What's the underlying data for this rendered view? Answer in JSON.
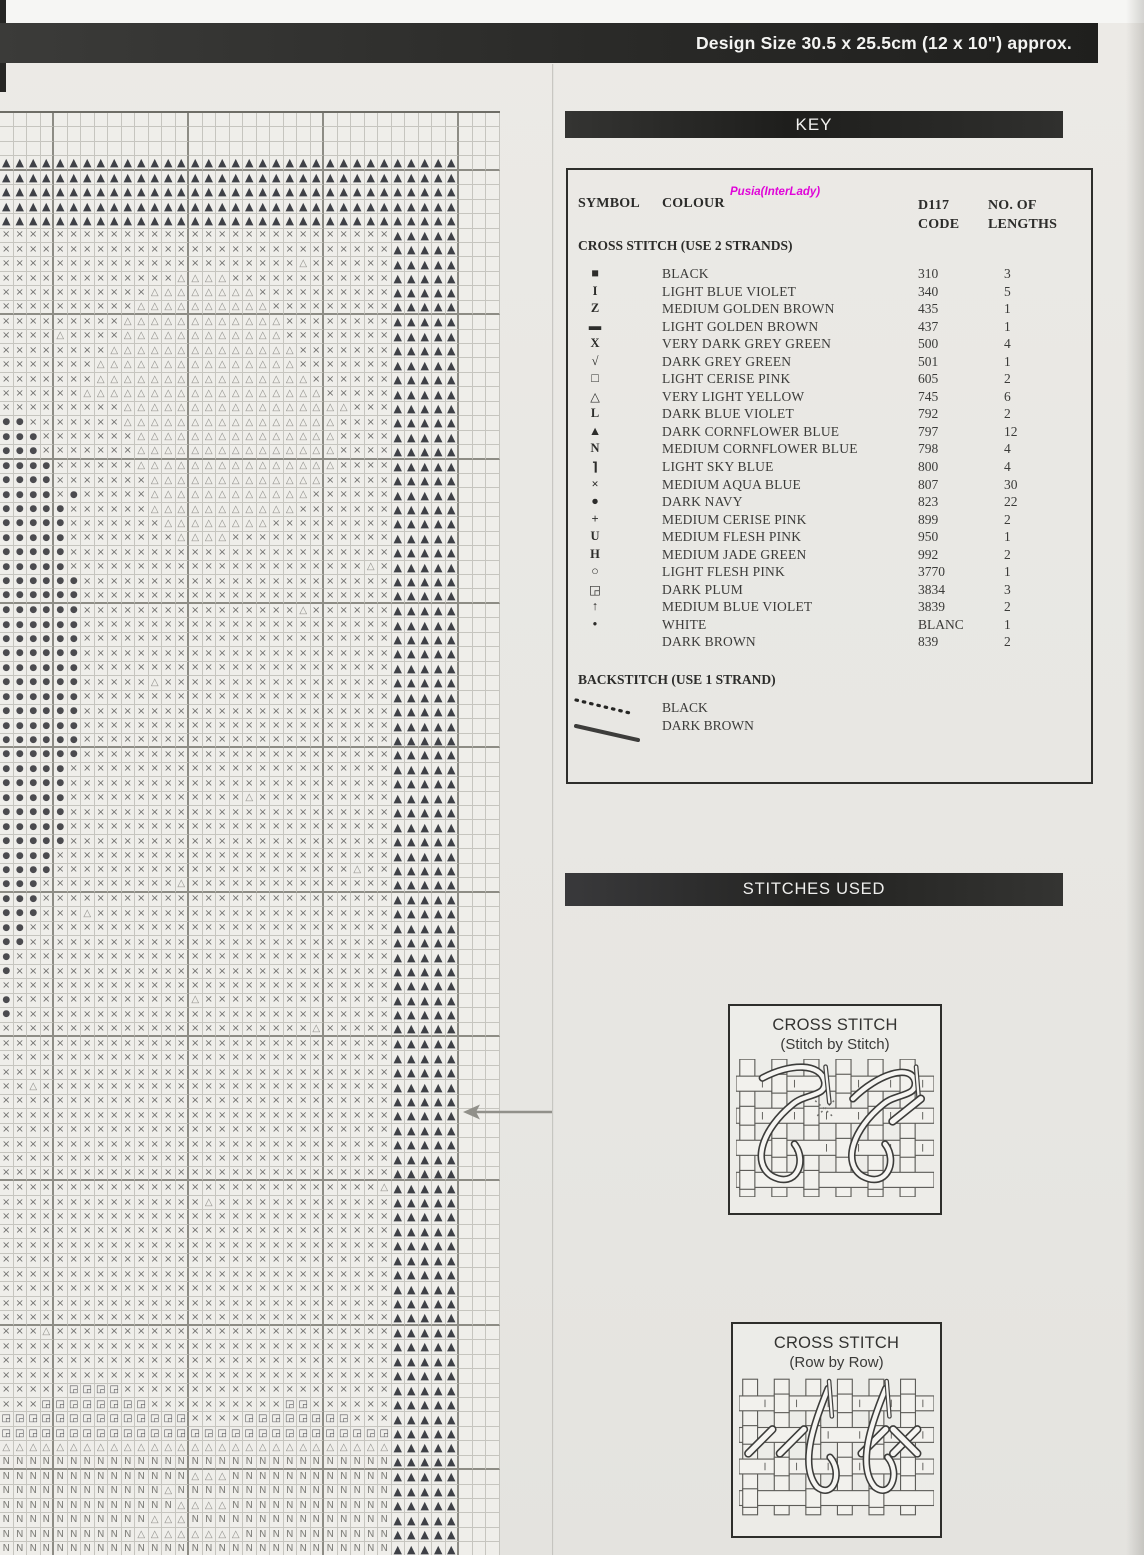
{
  "page": {
    "design_size_banner": "Design Size 30.5 x 25.5cm (12 x 10\") approx.",
    "watermark": "Pusia(InterLady)"
  },
  "key": {
    "title": "KEY",
    "columns": {
      "symbol": "SYMBOL",
      "colour": "COLOUR",
      "code_line1": "D117",
      "code_line2": "CODE",
      "lengths_line1": "NO. OF",
      "lengths_line2": "LENGTHS"
    },
    "cross_stitch_heading": "CROSS STITCH (USE 2 STRANDS)",
    "entries": [
      {
        "symbol": "■",
        "colour": "BLACK",
        "code": "310",
        "lengths": "3"
      },
      {
        "symbol": "I",
        "colour": "LIGHT BLUE VIOLET",
        "code": "340",
        "lengths": "5"
      },
      {
        "symbol": "Z",
        "colour": "MEDIUM GOLDEN BROWN",
        "code": "435",
        "lengths": "1"
      },
      {
        "symbol": "▬",
        "colour": "LIGHT GOLDEN BROWN",
        "code": "437",
        "lengths": "1"
      },
      {
        "symbol": "X",
        "colour": "VERY DARK GREY GREEN",
        "code": "500",
        "lengths": "4"
      },
      {
        "symbol": "√",
        "colour": "DARK GREY GREEN",
        "code": "501",
        "lengths": "1"
      },
      {
        "symbol": "□",
        "colour": "LIGHT CERISE PINK",
        "code": "605",
        "lengths": "2"
      },
      {
        "symbol": "△",
        "colour": "VERY LIGHT YELLOW",
        "code": "745",
        "lengths": "6"
      },
      {
        "symbol": "L",
        "colour": "DARK BLUE VIOLET",
        "code": "792",
        "lengths": "2"
      },
      {
        "symbol": "▲",
        "colour": "DARK CORNFLOWER BLUE",
        "code": "797",
        "lengths": "12"
      },
      {
        "symbol": "N",
        "colour": "MEDIUM CORNFLOWER BLUE",
        "code": "798",
        "lengths": "4"
      },
      {
        "symbol": "⌉",
        "colour": "LIGHT SKY BLUE",
        "code": "800",
        "lengths": "4"
      },
      {
        "symbol": "×",
        "colour": "MEDIUM AQUA BLUE",
        "code": "807",
        "lengths": "30"
      },
      {
        "symbol": "●",
        "colour": "DARK NAVY",
        "code": "823",
        "lengths": "22"
      },
      {
        "symbol": "+",
        "colour": "MEDIUM CERISE PINK",
        "code": "899",
        "lengths": "2"
      },
      {
        "symbol": "U",
        "colour": "MEDIUM FLESH PINK",
        "code": "950",
        "lengths": "1"
      },
      {
        "symbol": "H",
        "colour": "MEDIUM JADE GREEN",
        "code": "992",
        "lengths": "2"
      },
      {
        "symbol": "○",
        "colour": "LIGHT FLESH PINK",
        "code": "3770",
        "lengths": "1"
      },
      {
        "symbol": "◲",
        "colour": "DARK PLUM",
        "code": "3834",
        "lengths": "3"
      },
      {
        "symbol": "↑",
        "colour": "MEDIUM BLUE VIOLET",
        "code": "3839",
        "lengths": "2"
      },
      {
        "symbol": "•",
        "colour": "WHITE",
        "code": "BLANC",
        "lengths": "1"
      },
      {
        "symbol": "",
        "colour": "DARK BROWN",
        "code": "839",
        "lengths": "2"
      }
    ],
    "backstitch_heading": "BACKSTITCH (USE 1 STRAND)",
    "backstitch_entries": [
      {
        "style": "dotted",
        "colour": "BLACK"
      },
      {
        "style": "solid",
        "colour": "DARK BROWN"
      }
    ]
  },
  "stitches_used": {
    "title": "STITCHES USED",
    "diagrams": [
      {
        "title": "CROSS STITCH",
        "subtitle": "(Stitch by Stitch)"
      },
      {
        "title": "CROSS STITCH",
        "subtitle": "(Row by Row)"
      }
    ]
  },
  "chart": {
    "columns": 37,
    "symbol_map": {
      "A": "▲",
      "x": "×",
      "d": "△",
      "o": "●",
      "N": "N",
      "q": "◲",
      ".": ""
    },
    "rows": [
      ".....................................",
      ".....................................",
      ".....................................",
      "AAAAAAAAAAAAAAAAAAAAAAAAAAAAAAAAAA...",
      "AAAAAAAAAAAAAAAAAAAAAAAAAAAAAAAAAA...",
      "AAAAAAAAAAAAAAAAAAAAAAAAAAAAAAAAAA...",
      "AAAAAAAAAAAAAAAAAAAAAAAAAAAAAAAAAA...",
      "AAAAAAAAAAAAAAAAAAAAAAAAAAAAAAAAAA...",
      "xxxxxxxxxxxxxxxxxxxxxxxxxxxxxAAAAA...",
      "xxxxxxxxxxxxxxxxxxxxxxxxxxxxxAAAAA...",
      "xxxxxxxxxxxxxxxxxxxxxxdxxxxxxAAAAA...",
      "xxxxxxxxxxxxxddddxxxxxxxxxxxxAAAAA...",
      "xxxxxxxxxxxddddddddxxxxxxxxxxAAAAA...",
      "xxxxxxxxxxddddddddddxxxxxxxxxAAAAA...",
      "xxxxxxxxxddddddddddddxxxxxxxxAAAAA...",
      "xxxxdxxxxddddddddddddxxxxxxxxAAAAA...",
      "xxxxxxxxddddddddddddddxxxxxxxAAAAA...",
      "xxxxxxxdddddddddddddddxxxxxxxAAAAA...",
      "xxxxxxxddddddddddddddddxxxxxxAAAAA...",
      "xxxxxxddddddddddddddddddxxxxxAAAAA...",
      "xxxxxxxxxdddddddddddddddddxxxAAAAA...",
      "ooxxxxxxxddddddddddddddddxxxxAAAAA...",
      "oooxxxxxxxdddddddddddddddxxxxAAAAA...",
      "oooxxxxxxxdddddddddddddddxxxxAAAAA...",
      "ooooxxxxxxdddddddddddddddxxxxAAAAA...",
      "ooooxxxxxxxdddddddddddddxxxxxAAAAA...",
      "ooooxoxxxxxddddddddddddxxxxxxAAAAA...",
      "oooooxxxxxxdddddddddddxxxxxxxAAAAA...",
      "oooooxxxxxxxddddddddxxxxxxxxxAAAAA...",
      "oooooxxxxxxxxddddxxxxxxxxxxxxAAAAA...",
      "oooooxxxxxxxxxxxxxxxxxxxxxxxxAAAAA...",
      "oooooxxxxxxxxxxxxxxxxxxxxxxdxAAAAA...",
      "ooooooxxxxxxxxxxxxxxxxxxxxxxxAAAAA...",
      "ooooooxxxxxxxxxxxxxxxxxxxxxxxAAAAA...",
      "ooooooxxxxxxxxxxxxxxxxdxxxxxxAAAAA...",
      "ooooooxxxxxxxxxxxxxxxxxxxxxxxAAAAA...",
      "ooooooxxxxxxxxxxxxxxxxxxxxxxxAAAAA...",
      "ooooooxxxxxxxxxxxxxxxxxxxxxxxAAAAA...",
      "ooooooxxxxxxxxxxxxxxxxxxxxxxxAAAAA...",
      "ooooooxxxxxdxxxxxxxxxxxxxxxxxAAAAA...",
      "ooooooxxxxxxxxxxxxxxxxxxxxxxxAAAAA...",
      "ooooooxxxxxxxxxxxxxxxxxxxxxxxAAAAA...",
      "ooooooxxxxxxxxxxxxxxxxxxxxxxxAAAAA...",
      "ooooooxxxxxxxxxxxxxxxxxxxxxxxAAAAA...",
      "ooooooxxxxxxxxxxxxxxxxxxxxxxxAAAAA...",
      "oooooxxxxxxxxxxxxxxxxxxxxxxxxAAAAA...",
      "oooooxxxxxxxxxxxxxxxxxxxxxxxxAAAAA...",
      "oooooxxxxxxxxxxxxxdxxxxxxxxxxAAAAA...",
      "oooooxxxxxxxxxxxxxxxxxxxxxxxxAAAAA...",
      "oooooxxxxxxxxxxxxxxxxxxxxxxxxAAAAA...",
      "oooooxxxxxxxxxxxxxxxxxxxxxxxxAAAAA...",
      "ooooxxxxxxxxxxxxxxxxxxxxxxxxxAAAAA...",
      "ooooxxxxxxxxxxxxxxxxxxxxxxdxxAAAAA...",
      "oooxxxxxxxxxxdxxxxxxxxxxxxxxxAAAAA...",
      "oooxxxxxxxxxxxxxxxxxxxxxxxxxxAAAAA...",
      "oooxxxdxxxxxxxxxxxxxxxxxxxxxxAAAAA...",
      "ooxxxxxxxxxxxxxxxxxxxxxxxxxxxAAAAA...",
      "ooxxxxxxxxxxxxxxxxxxxxxxxxxxxAAAAA...",
      "oxxxxxxxxxxxxxxxxxxxxxxxxxxxxAAAAA...",
      "oxxxxxxxxxxxxxxxxxxxxxxxxxxxxAAAAA...",
      "xxxxxxxxxxxxxxxxxxxxxxxxxxxxxAAAAA...",
      "oxxxxxxxxxxxxxdxxxxxxxxxxxxxxAAAAA...",
      "oxxxxxxxxxxxxxxxxxxxxxxxxxxxxAAAAA...",
      "xxxxxxxxxxxxxxxxxxxxxxxdxxxxxAAAAA...",
      "xxxxxxxxxxxxxxxxxxxxxxxxxxxxxAAAAA...",
      "xxxxxxxxxxxxxxxxxxxxxxxxxxxxxAAAAA...",
      "xxxxxxxxxxxxxxxxxxxxxxxxxxxxxAAAAA...",
      "xxdxxxxxxxxxxxxxxxxxxxxxxxxxxAAAAA...",
      "xxxxxxxxxxxxxxxxxxxxxxxxxxxxxAAAAA...",
      "xxxxxxxxxxxxxxxxxxxxxxxxxxxxxAAAAA...",
      "xxxxxxxxxxxxxxxxxxxxxxxxxxxxxAAAAA...",
      "xxxxxxxxxxxxxxxxxxxxxxxxxxxxxAAAAA...",
      "xxxxxxxxxxxxxxxxxxxxxxxxxxxxxAAAAA...",
      "xxxxxxxxxxxxxxxxxxxxxxxxxxxxxAAAAA...",
      "xxxxxxxxxxxxxxxxxxxxxxxxxxxxdAAAAA...",
      "xxxxxxxxxxxxxxxdxxxxxxxxxxxxxAAAAA...",
      "xxxxxxxxxxxxxxxxxxxxxxxxxxxxxAAAAA...",
      "xxxxxxxxxxxxxxxxxxxxxxxxxxxxxAAAAA...",
      "xxxxxxxxxxxxxxxxxxxxxxxxxxxxxAAAAA...",
      "xxxxxxxxxxxxxxxxxxxxxxxxxxxxxAAAAA...",
      "xxxxxxxxxxxxxxxxxxxxxxxxxxxxxAAAAA...",
      "xxxxxxxxxxxxxxxxxxxxxxxxxxxxxAAAAA...",
      "xxxxxxxxxxxxxxxxxxxxxxxxxxxxxAAAAA...",
      "xxxxxxxxxxxxxxxxxxxxxxxxxxxxxAAAAA...",
      "xxxdxxxxxxxxxxxxxxxxxxxxxxxxxAAAAA...",
      "xxxxxxxxxxxxxxxxxxxxxxxxxxxxxAAAAA...",
      "xxxxxxxxxxxxxxxxxxxxxxxxxxxxxAAAAA...",
      "xxxxxxxxxxxxxxxxxxxxxxxxxxxxxAAAAA...",
      "xxxxxqqqqxxxxxxxxxxxxxxxxxxxxAAAAA...",
      "xxxqqqqqqqqxxxxxxxxxxqqxxxxxxAAAAA...",
      "qqqqqqqqqqqqqqxxxxqqqqqqqqxxxAAAAA...",
      "qqqqqqqqqqqqqqqqqqqqqqqqqqqqqAAAAA...",
      "dddddddddddddddddddddddddddddAAAAA...",
      "NNNNNNNNNNNNNNNNNNNNNNNNNNNNNAAAAA...",
      "NNNNNNNNNNNNNNdddNNNNNNNNNNNNAAAAA...",
      "NNNNNNNNNNNNdNNNNNNNNNNNNNNNNAAAAA...",
      "NNNNNNNNNNNNNddddNNNNNNNNNNNNAAAAA...",
      "NNNNNNNNNNNdddNNNNNNNNNNNNNNNAAAAA...",
      "NNNNNNNNNNddddddddNNNNNNNNNNNAAAAA...",
      "NNNNNNNNNNNNNNNNNNNNNNNNNNNNNAAAAA..."
    ]
  }
}
